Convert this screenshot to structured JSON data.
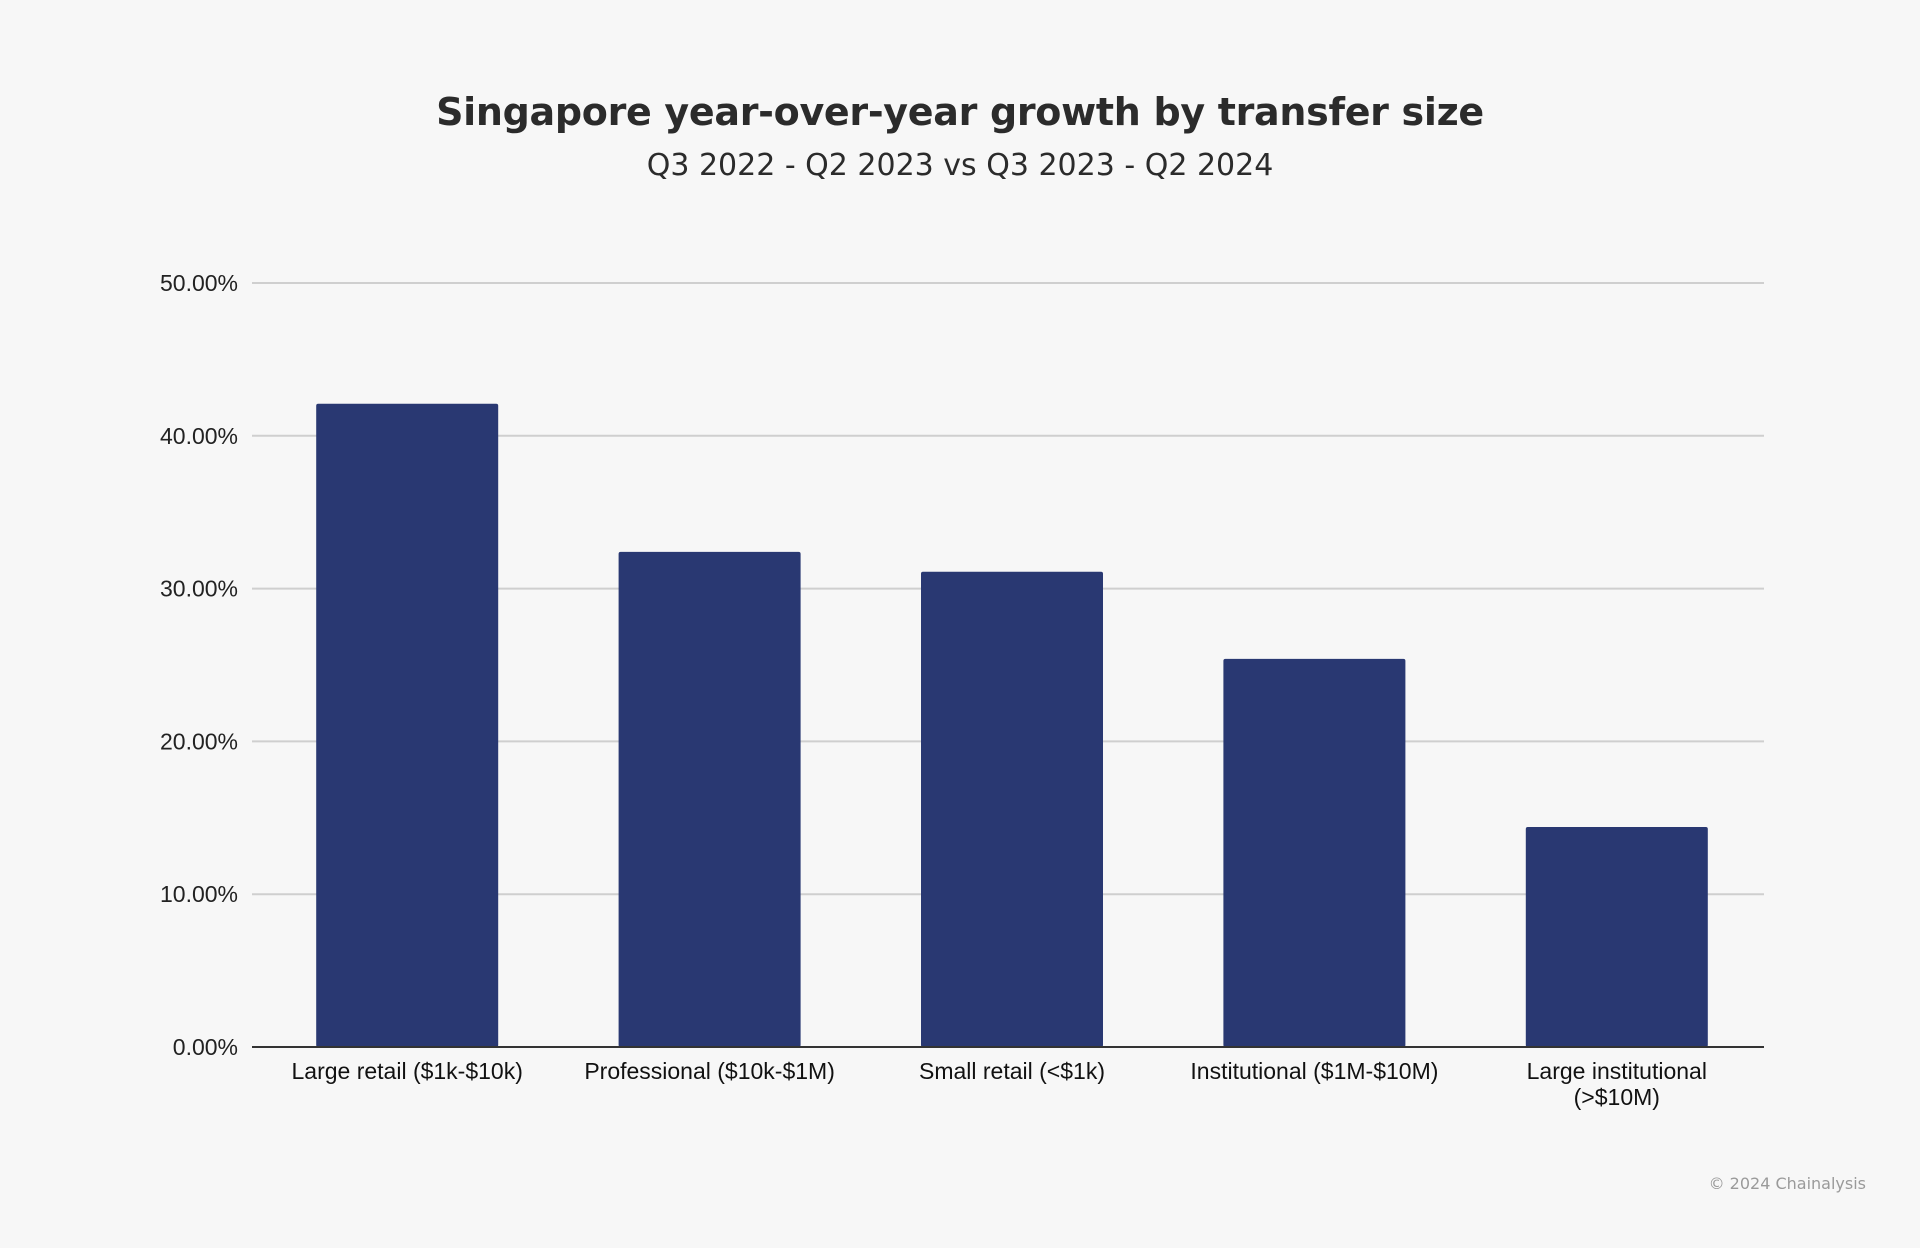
{
  "chart_data": {
    "type": "bar",
    "title": "Singapore year-over-year growth by transfer size",
    "subtitle": "Q3 2022 - Q2 2023 vs Q3 2023 - Q2 2024",
    "categories": [
      [
        "Large retail ($1k-$10k)"
      ],
      [
        "Professional ($10k-$1M)"
      ],
      [
        "Small retail (<$1k)"
      ],
      [
        "Institutional ($1M-$10M)"
      ],
      [
        "Large institutional",
        "(>$10M)"
      ]
    ],
    "values": [
      42.1,
      32.4,
      31.1,
      25.4,
      14.4
    ],
    "ylim": [
      0,
      50
    ],
    "yticks": [
      "0.00%",
      "10.00%",
      "20.00%",
      "30.00%",
      "40.00%",
      "50.00%"
    ],
    "ytick_values": [
      0,
      10,
      20,
      30,
      40,
      50
    ],
    "grid": true,
    "bar_color": "#293872",
    "grid_color": "#cfcfcf",
    "axis_color": "#333333"
  },
  "footer": {
    "copyright": "© 2024 Chainalysis"
  }
}
